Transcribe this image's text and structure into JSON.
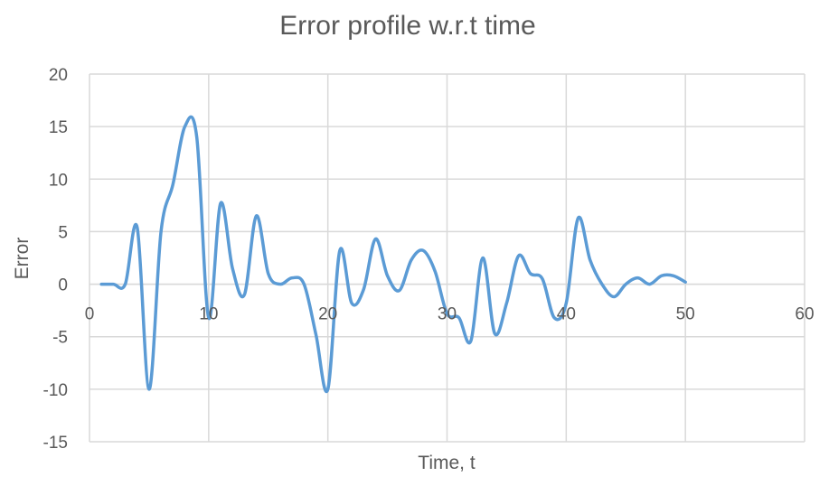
{
  "chart_data": {
    "type": "scatter",
    "title": "Error profile w.r.t time",
    "xlabel": "Time, t",
    "ylabel": "Error",
    "xlim": [
      0,
      60
    ],
    "ylim": [
      -15,
      20
    ],
    "x_ticks": [
      0,
      10,
      20,
      30,
      40,
      50,
      60
    ],
    "y_ticks": [
      20,
      15,
      10,
      5,
      0,
      -5,
      -10,
      -15
    ],
    "x_tick_labels": [
      "0",
      "10",
      "20",
      "30",
      "40",
      "50",
      "60"
    ],
    "y_tick_labels": [
      "20",
      "15",
      "10",
      "5",
      "0",
      "-5",
      "-10",
      "-15"
    ],
    "grid": true,
    "smooth_lines": true,
    "line_color": "#5B9BD5",
    "grid_color": "#D9D9D9",
    "series": [
      {
        "x": [
          1,
          2,
          3,
          4,
          5,
          6,
          7,
          8,
          9,
          10,
          11,
          12,
          13,
          14,
          15,
          16,
          17,
          18,
          19,
          20,
          21,
          22,
          23,
          24,
          25,
          26,
          27,
          28,
          29,
          30,
          31,
          32,
          33,
          34,
          35,
          36,
          37,
          38,
          39,
          40,
          41,
          42,
          43,
          44,
          45,
          46,
          47,
          48,
          49,
          50
        ],
        "y": [
          0,
          0,
          0,
          5.4,
          -10,
          5,
          9.5,
          15,
          14,
          -3.2,
          7.7,
          1.5,
          -1,
          6.5,
          1,
          0,
          0.6,
          0,
          -4.8,
          -10,
          3.2,
          -1.8,
          -0.5,
          4.3,
          0.8,
          -0.6,
          2.3,
          3.2,
          1.2,
          -2.8,
          -3.2,
          -5.4,
          2.5,
          -4.7,
          -1.8,
          2.7,
          1,
          0.5,
          -3.2,
          -1.8,
          6.3,
          2.3,
          0,
          -1.2,
          0,
          0.6,
          0,
          0.8,
          0.8,
          0.2
        ]
      }
    ]
  }
}
